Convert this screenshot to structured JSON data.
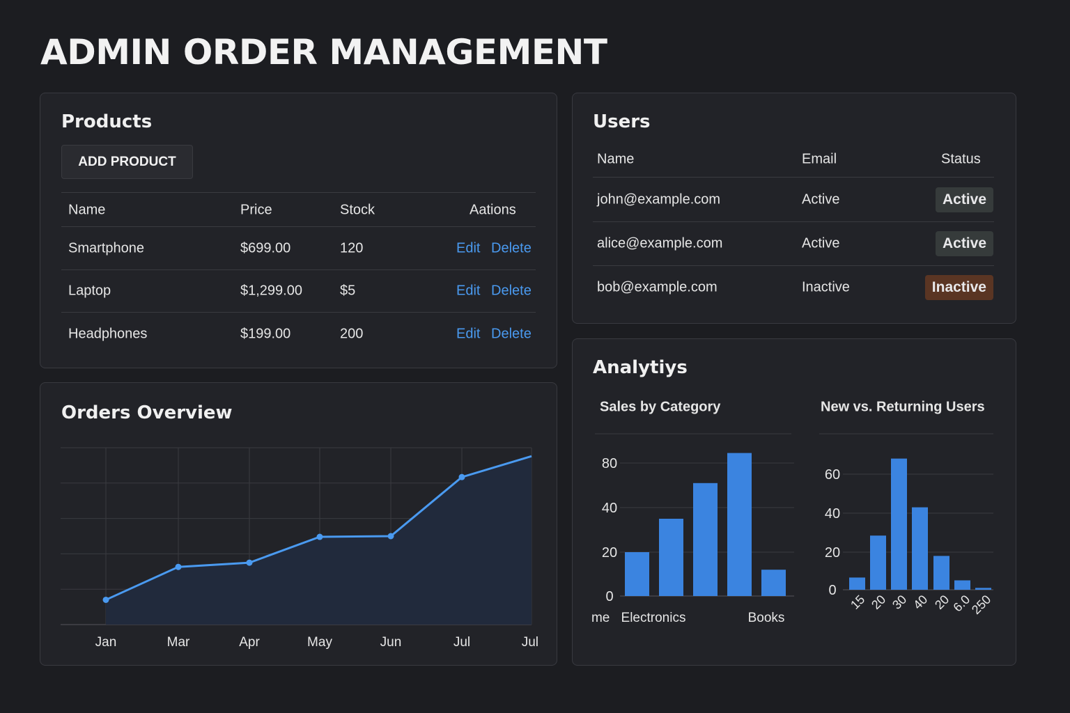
{
  "title": "ADMIN ORDER MANAGEMENT",
  "products": {
    "title": "Products",
    "add_label": "ADD PRODUCT",
    "headers": [
      "Name",
      "Price",
      "Stock",
      "Aations"
    ],
    "rows": [
      {
        "name": "Smartphone",
        "price": "$699.00",
        "stock": "120",
        "edit": "Edit",
        "delete": "Delete"
      },
      {
        "name": "Laptop",
        "price": "$1,299.00",
        "stock": "$5",
        "edit": "Edit",
        "delete": "Delete"
      },
      {
        "name": "Headphones",
        "price": "$199.00",
        "stock": "200",
        "edit": "Edit",
        "delete": "Delete"
      }
    ]
  },
  "users": {
    "title": "Users",
    "headers": [
      "Name",
      "Email",
      "Status"
    ],
    "rows": [
      {
        "name": "john@example.com",
        "email": "Active",
        "status": "Active",
        "status_color": "#363b3b"
      },
      {
        "name": "alice@example.com",
        "email": "Active",
        "status": "Active",
        "status_color": "#363b3b"
      },
      {
        "name": "bob@example.com",
        "email": "Inactive",
        "status": "Inactive",
        "status_color": "#5a3523"
      }
    ]
  },
  "analytics": {
    "title": "Analytiys"
  },
  "colors": {
    "accent": "#4a9af0",
    "bar": "#3b84e0"
  },
  "chart_data": [
    {
      "type": "area",
      "title": "Orders Overview",
      "categories": [
        "Jan",
        "Mar",
        "Apr",
        "May",
        "Jun",
        "Jul",
        "Jul"
      ],
      "values": [
        0.7,
        1.63,
        1.75,
        2.48,
        2.5,
        4.17,
        4.76
      ],
      "markers": [
        true,
        true,
        true,
        true,
        true,
        true,
        false
      ],
      "ylim": [
        0,
        5
      ],
      "grid": true
    },
    {
      "type": "bar",
      "title": "Sales by Category",
      "categories": [
        "Electronics",
        "",
        "Home",
        "",
        "Books"
      ],
      "values": [
        20,
        35,
        62,
        89,
        12
      ],
      "yticks": [
        0,
        20,
        40,
        80
      ],
      "grid": true
    },
    {
      "type": "bar",
      "title": "New vs. Returning Users",
      "categories": [
        "15",
        "20",
        "30",
        "40",
        "20",
        "6.0",
        "250"
      ],
      "values": [
        6.5,
        28.5,
        68,
        43,
        18,
        5,
        1
      ],
      "yticks": [
        0,
        20,
        40,
        60
      ],
      "ylim": [
        0,
        70
      ],
      "grid": true
    }
  ]
}
